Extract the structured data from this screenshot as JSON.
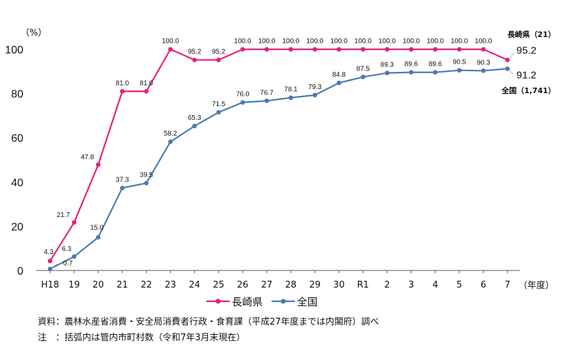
{
  "chart_data": {
    "type": "line",
    "y_unit": "（%）",
    "x_unit": "（年度）",
    "ylim": [
      0,
      100
    ],
    "yticks": [
      0,
      20,
      40,
      60,
      80,
      100
    ],
    "grid": false,
    "legend_position": "bottom",
    "categories": [
      "H18",
      "19",
      "20",
      "21",
      "22",
      "23",
      "24",
      "25",
      "26",
      "27",
      "28",
      "29",
      "30",
      "R1",
      "2",
      "3",
      "4",
      "5",
      "6",
      "7"
    ],
    "series": [
      {
        "name": "長崎県",
        "color": "#e6207a",
        "values": [
          4.3,
          21.7,
          47.8,
          81.0,
          81.0,
          100.0,
          95.2,
          95.2,
          100.0,
          100.0,
          100.0,
          100.0,
          100.0,
          100.0,
          100.0,
          100.0,
          100.0,
          100.0,
          100.0,
          95.2
        ],
        "labels": [
          "4.3",
          "21.7",
          "47.8",
          "81.0",
          "81.0",
          "100.0",
          "95.2",
          "95.2",
          "100.0",
          "100.0",
          "100.0",
          "100.0",
          "100.0",
          "100.0",
          "100.0",
          "100.0",
          "100.0",
          "100.0",
          "100.0",
          "95.2"
        ],
        "end_label": "長崎県（21）"
      },
      {
        "name": "全国",
        "color": "#4a7ab0",
        "values": [
          0.7,
          6.3,
          15.0,
          37.3,
          39.5,
          58.2,
          65.3,
          71.5,
          76.0,
          76.7,
          78.1,
          79.3,
          84.8,
          87.5,
          89.3,
          89.6,
          89.6,
          90.5,
          90.3,
          91.2
        ],
        "labels": [
          "0.7",
          "6.3",
          "15.0",
          "37.3",
          "39.5",
          "58.2",
          "65.3",
          "71.5",
          "76.0",
          "76.7",
          "78.1",
          "79.3",
          "84.8",
          "87.5",
          "89.3",
          "89.6",
          "89.6",
          "90.5",
          "90.3",
          "91.2"
        ],
        "end_label": "全国（1,741）"
      }
    ]
  },
  "notes": {
    "source": "資料：農林水産省消費・安全局消費者行政・食育課（平成27年度までは内閣府）調べ",
    "note": "注　：括弧内は管内市町村数（令和7年3月末現在）"
  }
}
